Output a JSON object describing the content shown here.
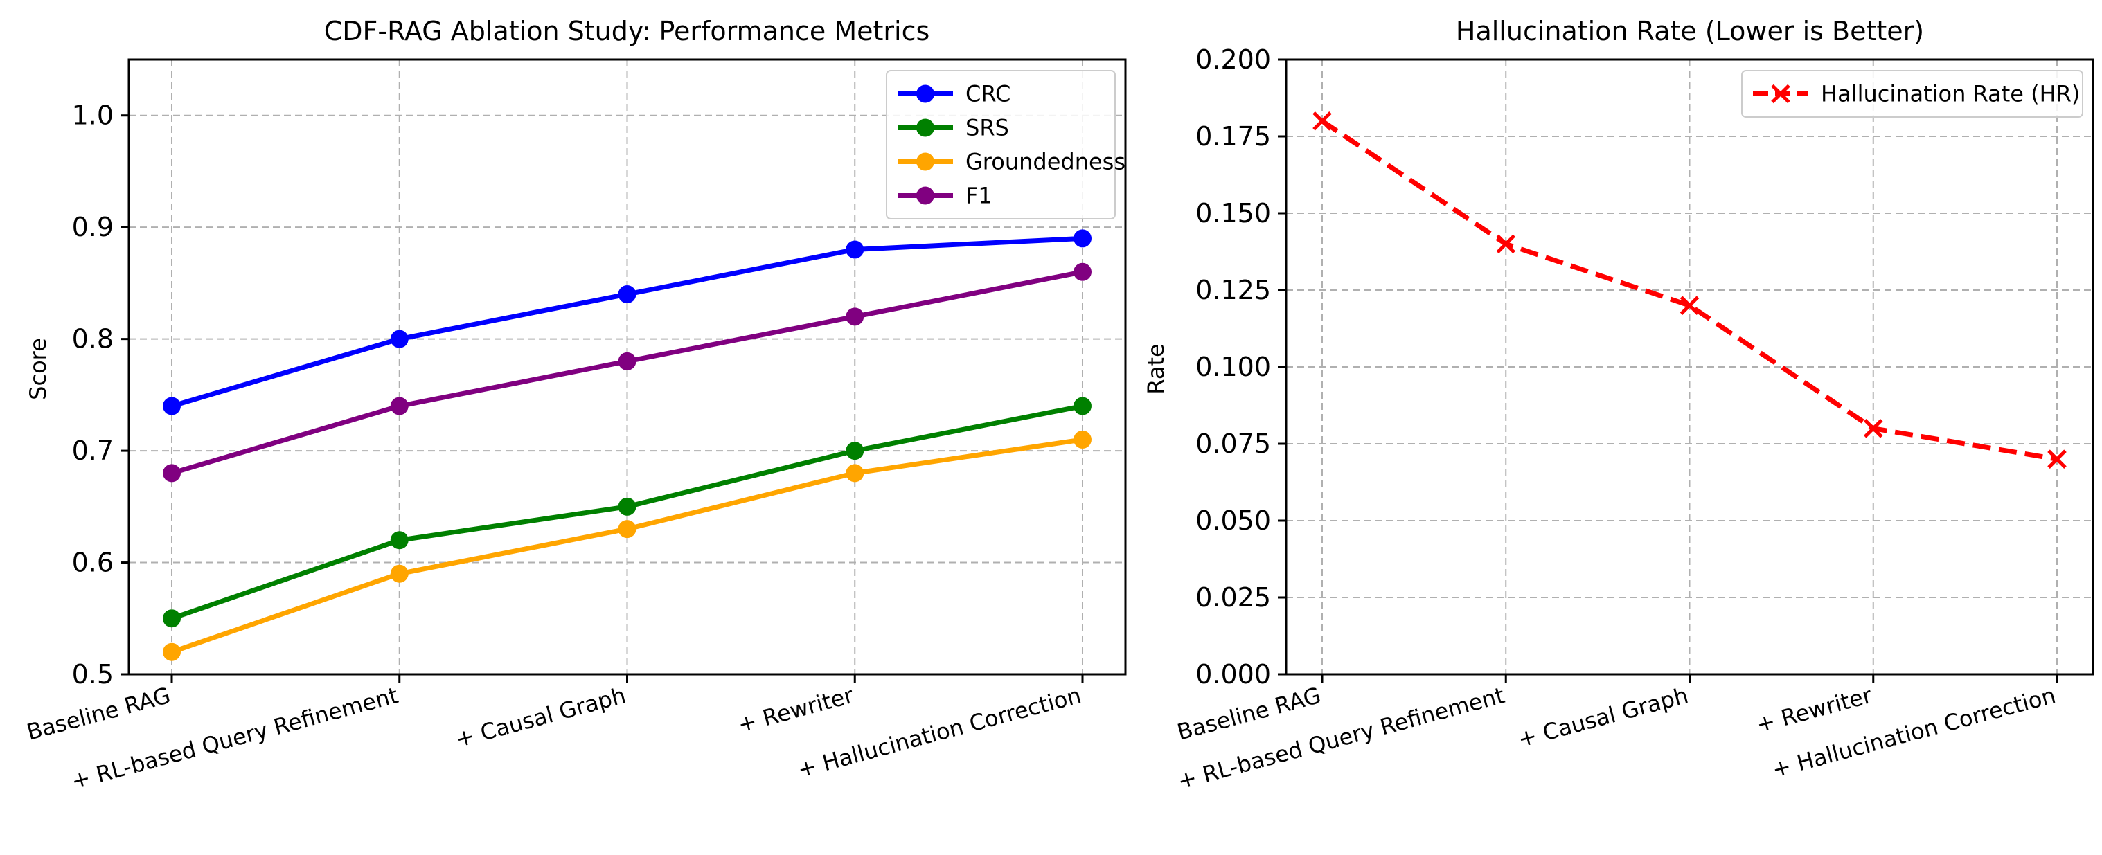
{
  "chart_data": [
    {
      "type": "line",
      "title": "CDF-RAG Ablation Study: Performance Metrics",
      "xlabel": "",
      "ylabel": "Score",
      "categories": [
        "Baseline RAG",
        "+ RL-based Query Refinement",
        "+ Causal Graph",
        "+ Rewriter",
        "+ Hallucination Correction"
      ],
      "ylim": [
        0.5,
        1.05
      ],
      "yticks": [
        0.5,
        0.6,
        0.7,
        0.8,
        0.9,
        1.0
      ],
      "ytick_labels": [
        "0.5",
        "0.6",
        "0.7",
        "0.8",
        "0.9",
        "1.0"
      ],
      "grid": true,
      "legend_position": "upper right",
      "series": [
        {
          "name": "CRC",
          "values": [
            0.74,
            0.8,
            0.84,
            0.88,
            0.89
          ],
          "color": "#0000ff",
          "marker": "circle",
          "linestyle": "solid"
        },
        {
          "name": "SRS",
          "values": [
            0.55,
            0.62,
            0.65,
            0.7,
            0.74
          ],
          "color": "#008000",
          "marker": "circle",
          "linestyle": "solid"
        },
        {
          "name": "Groundedness",
          "values": [
            0.52,
            0.59,
            0.63,
            0.68,
            0.71
          ],
          "color": "#ffa500",
          "marker": "circle",
          "linestyle": "solid"
        },
        {
          "name": "F1",
          "values": [
            0.68,
            0.74,
            0.78,
            0.82,
            0.86
          ],
          "color": "#800080",
          "marker": "circle",
          "linestyle": "solid"
        }
      ]
    },
    {
      "type": "line",
      "title": "Hallucination Rate (Lower is Better)",
      "xlabel": "",
      "ylabel": "Rate",
      "categories": [
        "Baseline RAG",
        "+ RL-based Query Refinement",
        "+ Causal Graph",
        "+ Rewriter",
        "+ Hallucination Correction"
      ],
      "ylim": [
        0.0,
        0.2
      ],
      "yticks": [
        0.0,
        0.025,
        0.05,
        0.075,
        0.1,
        0.125,
        0.15,
        0.175,
        0.2
      ],
      "ytick_labels": [
        "0.000",
        "0.025",
        "0.050",
        "0.075",
        "0.100",
        "0.125",
        "0.150",
        "0.175",
        "0.200"
      ],
      "grid": true,
      "legend_position": "upper right",
      "series": [
        {
          "name": "Hallucination Rate (HR)",
          "values": [
            0.18,
            0.14,
            0.12,
            0.08,
            0.07
          ],
          "color": "#ff0000",
          "marker": "x",
          "linestyle": "dashed"
        }
      ]
    }
  ]
}
